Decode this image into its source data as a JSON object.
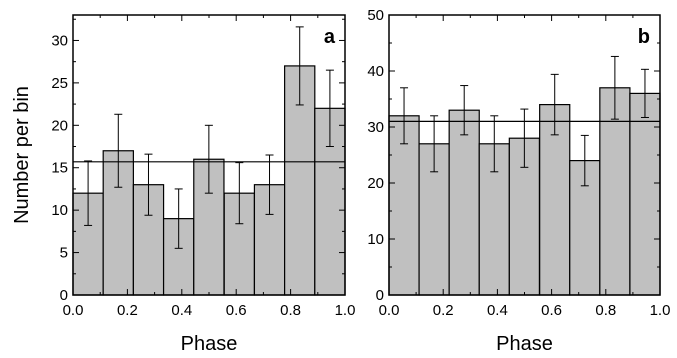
{
  "chart_data": [
    {
      "type": "bar",
      "panel_label": "a",
      "xlabel": "Phase",
      "ylabel": "Number per bin",
      "xlim": [
        0.0,
        1.0
      ],
      "ylim": [
        0,
        33
      ],
      "x_ticks": [
        "0.0",
        "0.2",
        "0.4",
        "0.6",
        "0.8",
        "1.0"
      ],
      "y_ticks": [
        "0",
        "5",
        "10",
        "15",
        "20",
        "25",
        "30"
      ],
      "bin_width": 0.111,
      "bin_starts": [
        0.0,
        0.111,
        0.222,
        0.333,
        0.444,
        0.556,
        0.667,
        0.778,
        0.889
      ],
      "values": [
        12,
        17,
        13,
        9,
        16,
        12,
        13,
        27,
        22
      ],
      "errors": [
        3.8,
        4.3,
        3.6,
        3.5,
        4.0,
        3.6,
        3.5,
        4.6,
        4.5
      ],
      "mean_line": 15.7,
      "bar_color": "#c0c0c0",
      "grid": false
    },
    {
      "type": "bar",
      "panel_label": "b",
      "xlabel": "Phase",
      "ylabel": "",
      "xlim": [
        0.0,
        1.0
      ],
      "ylim": [
        0,
        50
      ],
      "x_ticks": [
        "0.0",
        "0.2",
        "0.4",
        "0.6",
        "0.8",
        "1.0"
      ],
      "y_ticks": [
        "0",
        "10",
        "20",
        "30",
        "40",
        "50"
      ],
      "bin_width": 0.111,
      "bin_starts": [
        0.0,
        0.111,
        0.222,
        0.333,
        0.444,
        0.556,
        0.667,
        0.778,
        0.889
      ],
      "values": [
        32,
        27,
        33,
        27,
        28,
        34,
        24,
        37,
        36
      ],
      "errors": [
        5.0,
        5.0,
        4.4,
        5.0,
        5.2,
        5.4,
        4.5,
        5.6,
        4.3
      ],
      "mean_line": 31,
      "bar_color": "#c0c0c0",
      "grid": false
    }
  ]
}
